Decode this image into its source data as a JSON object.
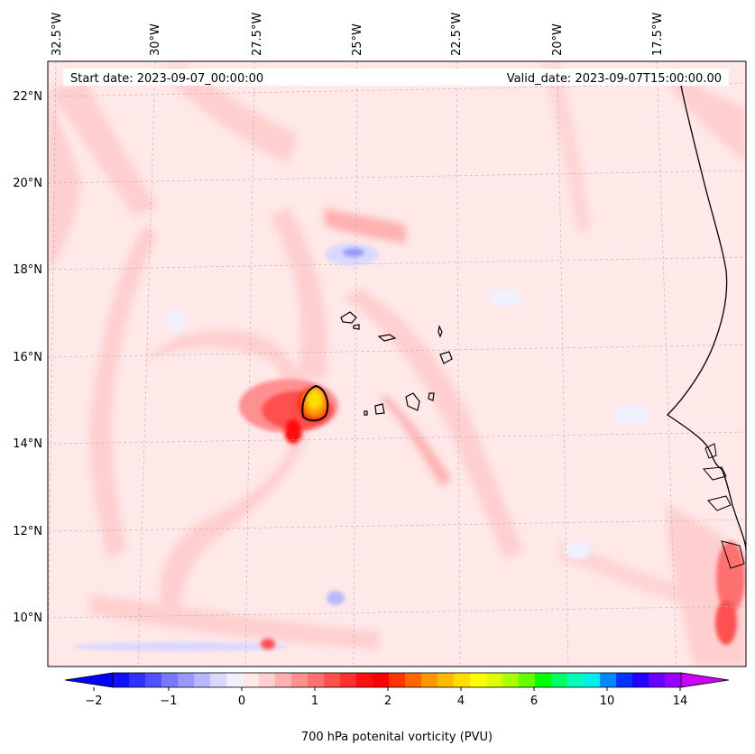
{
  "header": {
    "start_date": "Start date: 2023-09-07_00:00:00",
    "valid_date": "Valid_date: 2023-09-07T15:00:00.00"
  },
  "longitude_labels": [
    "32.5°W",
    "30°W",
    "27.5°W",
    "25°W",
    "22.5°W",
    "20°W",
    "17.5°W"
  ],
  "latitude_labels": [
    "22°N",
    "20°N",
    "18°N",
    "16°N",
    "14°N",
    "12°N",
    "10°N"
  ],
  "colorbar": {
    "label": "700 hPa potenital vorticity (PVU)",
    "tick_labels": [
      "−2",
      "−1",
      "0",
      "1",
      "2",
      "4",
      "6",
      "10",
      "14"
    ],
    "extend": "both",
    "colors": [
      "#1010ff",
      "#3030ff",
      "#5050ff",
      "#7878ff",
      "#9898ff",
      "#b8b8ff",
      "#d8d8ff",
      "#f0f0ff",
      "#ffe8e8",
      "#ffcfcf",
      "#ffb0b0",
      "#ff9090",
      "#ff7070",
      "#ff5050",
      "#ff3030",
      "#ff1010",
      "#ff0000",
      "#ff3300",
      "#ff6600",
      "#ff9900",
      "#ffbb00",
      "#ffdd00",
      "#ffff00",
      "#ddff00",
      "#aaff00",
      "#66ff00",
      "#00ff00",
      "#00ff66",
      "#00ffbb",
      "#00eeee",
      "#0088ff",
      "#0033ff",
      "#2200ff",
      "#6600ff",
      "#9900ff"
    ],
    "under_color": "#0000ff",
    "over_color": "#cc00ff"
  },
  "map": {
    "variable": "700 hPa potential vorticity",
    "units": "PVU",
    "background_color": "#ffe8e8",
    "lon_range": [
      -33.2,
      -14.5
    ],
    "lat_range": [
      8.9,
      22.8
    ]
  }
}
